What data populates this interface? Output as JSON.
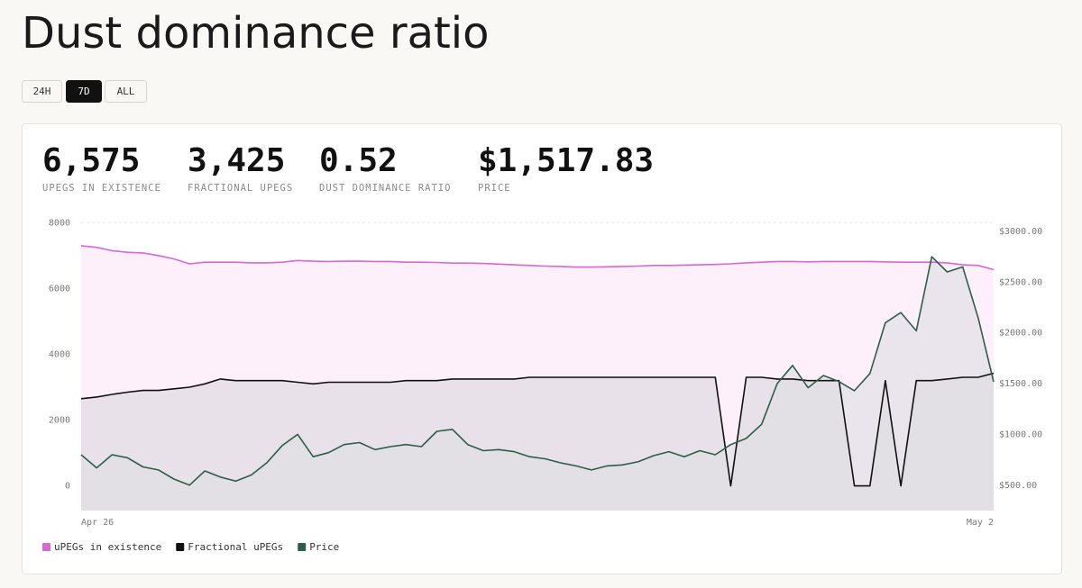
{
  "header": {
    "title": "Dust dominance ratio"
  },
  "buttons": [
    "24H",
    "7D",
    "ALL"
  ],
  "stats": [
    {
      "value": "6,575",
      "label": "UPEGS IN EXISTENCE"
    },
    {
      "value": "3,425",
      "label": "FRACTIONAL UPEGS"
    },
    {
      "value": "0.52",
      "label": "DUST DOMINANCE RATIO"
    },
    {
      "value": "$1,517.83",
      "label": "PRICE"
    }
  ],
  "chart_data": {
    "type": "line",
    "categories": [
      "Apr 26",
      null,
      null,
      null,
      null,
      null,
      null,
      null,
      null,
      null,
      null,
      null,
      null,
      null,
      null,
      null,
      null,
      null,
      null,
      null,
      null,
      null,
      null,
      null,
      null,
      null,
      null,
      null,
      null,
      null,
      null,
      null,
      null,
      null,
      null,
      null,
      null,
      null,
      null,
      null,
      null,
      null,
      null,
      null,
      null,
      null,
      null,
      null,
      null,
      null,
      null,
      null,
      null,
      null,
      null,
      null,
      null,
      null,
      null,
      "May 2"
    ],
    "series": [
      {
        "name": "uPEGs in existence",
        "color": "#d966d6",
        "fill": "#fdf0fb",
        "values": [
          7300,
          7250,
          7150,
          7100,
          7080,
          7000,
          6900,
          6750,
          6800,
          6800,
          6800,
          6780,
          6780,
          6800,
          6850,
          6830,
          6820,
          6830,
          6830,
          6820,
          6820,
          6800,
          6800,
          6790,
          6770,
          6770,
          6760,
          6740,
          6720,
          6700,
          6680,
          6670,
          6650,
          6650,
          6660,
          6670,
          6680,
          6700,
          6700,
          6710,
          6720,
          6730,
          6750,
          6780,
          6800,
          6820,
          6820,
          6810,
          6820,
          6820,
          6820,
          6820,
          6810,
          6800,
          6800,
          6800,
          6780,
          6720,
          6700,
          6575
        ]
      },
      {
        "name": "Fractional uPEGs",
        "color": "#111111",
        "fill": "#e9e1e9",
        "values": [
          2650,
          2700,
          2780,
          2850,
          2900,
          2900,
          2950,
          3000,
          3100,
          3250,
          3200,
          3200,
          3200,
          3200,
          3150,
          3100,
          3150,
          3150,
          3150,
          3150,
          3150,
          3200,
          3200,
          3200,
          3250,
          3250,
          3250,
          3250,
          3250,
          3300,
          3300,
          3300,
          3300,
          3300,
          3300,
          3300,
          3300,
          3300,
          3300,
          3300,
          3300,
          3300,
          0,
          3300,
          3300,
          3250,
          3250,
          3200,
          3200,
          3200,
          0,
          0,
          3200,
          0,
          3200,
          3200,
          3250,
          3300,
          3300,
          3425
        ]
      },
      {
        "name": "Price",
        "color": "#2d5e48",
        "fill": "#dedde2",
        "axis": "y2",
        "values": [
          800,
          670,
          800,
          770,
          680,
          650,
          560,
          500,
          640,
          580,
          540,
          600,
          720,
          890,
          1000,
          780,
          820,
          900,
          920,
          850,
          880,
          900,
          880,
          1030,
          1050,
          900,
          840,
          850,
          830,
          780,
          760,
          720,
          690,
          650,
          690,
          700,
          730,
          790,
          830,
          780,
          840,
          800,
          900,
          960,
          1100,
          1500,
          1680,
          1460,
          1580,
          1520,
          1430,
          1600,
          2100,
          2200,
          2020,
          2750,
          2600,
          2650,
          2150,
          1517.83
        ]
      }
    ],
    "ylim": [
      -750,
      8200
    ],
    "yticks": [
      0,
      2000,
      4000,
      6000,
      8000
    ],
    "y2lim": [
      250,
      3150
    ],
    "y2ticks": [
      {
        "value": 500,
        "label": "$500.00"
      },
      {
        "value": 1000,
        "label": "$1000.00"
      },
      {
        "value": 1500,
        "label": "$1500.00"
      },
      {
        "value": 2000,
        "label": "$2000.00"
      },
      {
        "value": 2500,
        "label": "$2500.00"
      },
      {
        "value": 3000,
        "label": "$3000.00"
      }
    ],
    "grid": true,
    "legend": "bottom-left"
  }
}
